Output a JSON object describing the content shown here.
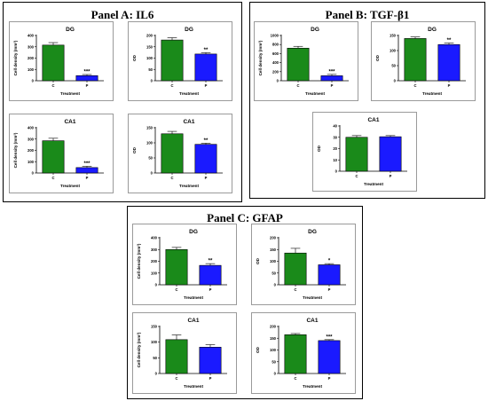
{
  "panels": [
    {
      "title": "Panel A: IL6"
    },
    {
      "title": "Panel B: TGF-β1"
    },
    {
      "title": "Panel C: GFAP"
    }
  ],
  "colors": {
    "control": "#1a8a1a",
    "treated": "#1a1aff"
  },
  "chart_data": [
    {
      "type": "bar",
      "panel": "Panel A: IL6",
      "title": "DG",
      "xlabel": "Treatment",
      "ylabel": "Cell density (mm²)",
      "categories": [
        "C",
        "P"
      ],
      "values": [
        315,
        45
      ],
      "errors": [
        22,
        10
      ],
      "significance": [
        "",
        "***"
      ],
      "ylim": [
        0,
        400
      ],
      "yticks": [
        0,
        100,
        200,
        300,
        400
      ],
      "colors": [
        "#1a8a1a",
        "#1a1aff"
      ]
    },
    {
      "type": "bar",
      "panel": "Panel A: IL6",
      "title": "DG",
      "xlabel": "Treatment",
      "ylabel": "OD",
      "categories": [
        "C",
        "P"
      ],
      "values": [
        180,
        118
      ],
      "errors": [
        10,
        6
      ],
      "significance": [
        "",
        "**"
      ],
      "ylim": [
        0,
        200
      ],
      "yticks": [
        0,
        50,
        100,
        150,
        200
      ],
      "colors": [
        "#1a8a1a",
        "#1a1aff"
      ]
    },
    {
      "type": "bar",
      "panel": "Panel A: IL6",
      "title": "CA1",
      "xlabel": "Treatment",
      "ylabel": "Cell density (mm²)",
      "categories": [
        "C",
        "P"
      ],
      "values": [
        285,
        48
      ],
      "errors": [
        22,
        12
      ],
      "significance": [
        "",
        "***"
      ],
      "ylim": [
        0,
        400
      ],
      "yticks": [
        0,
        100,
        200,
        300,
        400
      ],
      "colors": [
        "#1a8a1a",
        "#1a1aff"
      ]
    },
    {
      "type": "bar",
      "panel": "Panel A: IL6",
      "title": "CA1",
      "xlabel": "Treatment",
      "ylabel": "OD",
      "categories": [
        "C",
        "P"
      ],
      "values": [
        130,
        95
      ],
      "errors": [
        8,
        4
      ],
      "significance": [
        "",
        "**"
      ],
      "ylim": [
        0,
        150
      ],
      "yticks": [
        0,
        50,
        100,
        150
      ],
      "colors": [
        "#1a8a1a",
        "#1a1aff"
      ]
    },
    {
      "type": "bar",
      "panel": "Panel B: TGF-β1",
      "title": "DG",
      "xlabel": "Treatment",
      "ylabel": "Cell density (mm²)",
      "categories": [
        "C",
        "P"
      ],
      "values": [
        720,
        110
      ],
      "errors": [
        40,
        30
      ],
      "significance": [
        "",
        "***"
      ],
      "ylim": [
        0,
        1000
      ],
      "yticks": [
        0,
        200,
        400,
        600,
        800,
        1000
      ],
      "colors": [
        "#1a8a1a",
        "#1a1aff"
      ]
    },
    {
      "type": "bar",
      "panel": "Panel B: TGF-β1",
      "title": "DG",
      "xlabel": "Treatment",
      "ylabel": "OD",
      "categories": [
        "C",
        "P"
      ],
      "values": [
        140,
        120
      ],
      "errors": [
        5,
        5
      ],
      "significance": [
        "",
        "**"
      ],
      "ylim": [
        0,
        150
      ],
      "yticks": [
        0,
        50,
        100,
        150
      ],
      "colors": [
        "#1a8a1a",
        "#1a1aff"
      ]
    },
    {
      "type": "bar",
      "panel": "Panel B: TGF-β1",
      "title": "CA1",
      "xlabel": "Treatment",
      "ylabel": "OD",
      "categories": [
        "C",
        "P"
      ],
      "values": [
        30,
        30.5
      ],
      "errors": [
        1.5,
        1
      ],
      "significance": [
        "",
        ""
      ],
      "ylim": [
        0,
        40
      ],
      "yticks": [
        0,
        10,
        20,
        30,
        40
      ],
      "colors": [
        "#1a8a1a",
        "#1a1aff"
      ]
    },
    {
      "type": "bar",
      "panel": "Panel C: GFAP",
      "title": "DG",
      "xlabel": "Treatment",
      "ylabel": "Cell density (mm²)",
      "categories": [
        "C",
        "P"
      ],
      "values": [
        300,
        165
      ],
      "errors": [
        18,
        15
      ],
      "significance": [
        "",
        "**"
      ],
      "ylim": [
        0,
        400
      ],
      "yticks": [
        0,
        100,
        200,
        300,
        400
      ],
      "colors": [
        "#1a8a1a",
        "#1a1aff"
      ]
    },
    {
      "type": "bar",
      "panel": "Panel C: GFAP",
      "title": "DG",
      "xlabel": "Treatment",
      "ylabel": "OD",
      "categories": [
        "C",
        "P"
      ],
      "values": [
        135,
        85
      ],
      "errors": [
        20,
        5
      ],
      "significance": [
        "",
        "*"
      ],
      "ylim": [
        0,
        200
      ],
      "yticks": [
        0,
        50,
        100,
        150,
        200
      ],
      "colors": [
        "#1a8a1a",
        "#1a1aff"
      ]
    },
    {
      "type": "bar",
      "panel": "Panel C: GFAP",
      "title": "CA1",
      "xlabel": "Treatment",
      "ylabel": "Cell density (mm²)",
      "categories": [
        "C",
        "P"
      ],
      "values": [
        108,
        84
      ],
      "errors": [
        15,
        8
      ],
      "significance": [
        "",
        ""
      ],
      "ylim": [
        0,
        150
      ],
      "yticks": [
        0,
        50,
        100,
        150
      ],
      "colors": [
        "#1a8a1a",
        "#1a1aff"
      ]
    },
    {
      "type": "bar",
      "panel": "Panel C: GFAP",
      "title": "CA1",
      "xlabel": "Treatment",
      "ylabel": "OD",
      "categories": [
        "C",
        "P"
      ],
      "values": [
        165,
        140
      ],
      "errors": [
        5,
        4
      ],
      "significance": [
        "",
        "***"
      ],
      "ylim": [
        0,
        200
      ],
      "yticks": [
        0,
        50,
        100,
        150,
        200
      ],
      "colors": [
        "#1a8a1a",
        "#1a1aff"
      ]
    }
  ]
}
